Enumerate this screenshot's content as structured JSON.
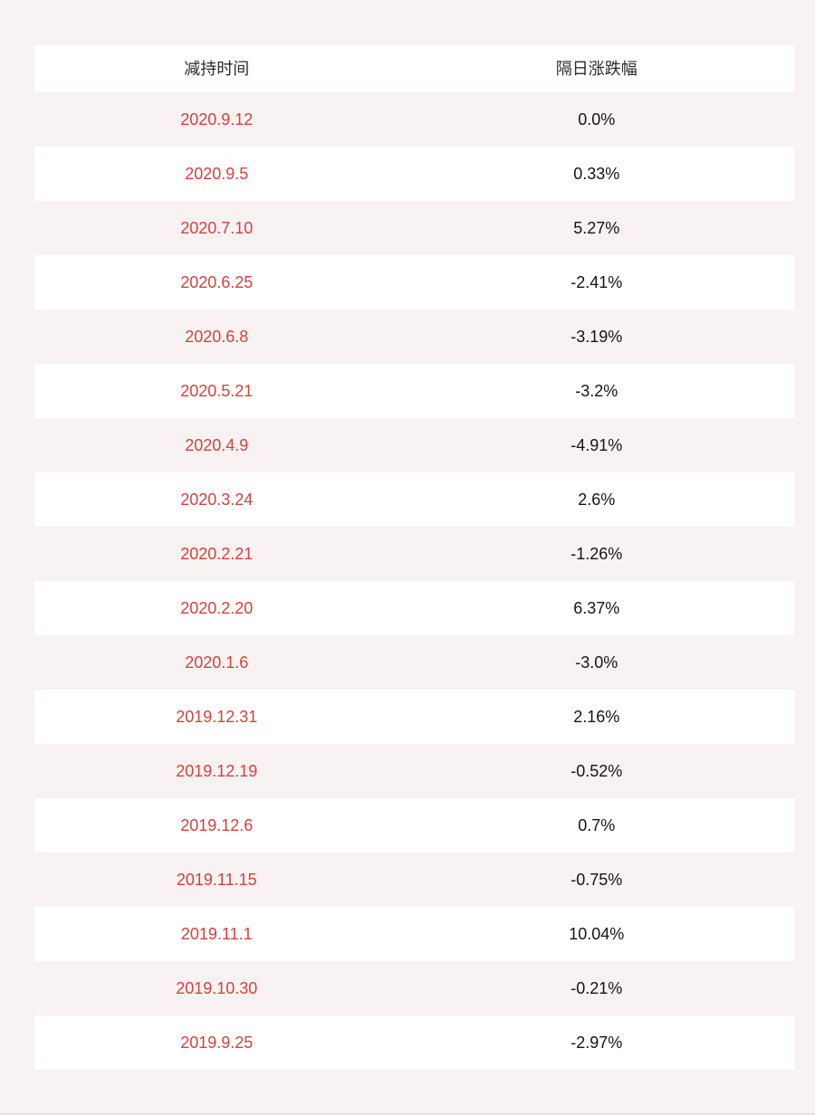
{
  "chart_data": {
    "type": "table",
    "columns": [
      "减持时间",
      "隔日涨跌幅"
    ],
    "rows": [
      {
        "date": "2020.9.12",
        "change": "0.0%"
      },
      {
        "date": "2020.9.5",
        "change": "0.33%"
      },
      {
        "date": "2020.7.10",
        "change": "5.27%"
      },
      {
        "date": "2020.6.25",
        "change": "-2.41%"
      },
      {
        "date": "2020.6.8",
        "change": "-3.19%"
      },
      {
        "date": "2020.5.21",
        "change": "-3.2%"
      },
      {
        "date": "2020.4.9",
        "change": "-4.91%"
      },
      {
        "date": "2020.3.24",
        "change": "2.6%"
      },
      {
        "date": "2020.2.21",
        "change": "-1.26%"
      },
      {
        "date": "2020.2.20",
        "change": "6.37%"
      },
      {
        "date": "2020.1.6",
        "change": "-3.0%"
      },
      {
        "date": "2019.12.31",
        "change": "2.16%"
      },
      {
        "date": "2019.12.19",
        "change": "-0.52%"
      },
      {
        "date": "2019.12.6",
        "change": "0.7%"
      },
      {
        "date": "2019.11.15",
        "change": "-0.75%"
      },
      {
        "date": "2019.11.1",
        "change": "10.04%"
      },
      {
        "date": "2019.10.30",
        "change": "-0.21%"
      },
      {
        "date": "2019.9.25",
        "change": "-2.97%"
      }
    ]
  },
  "colors": {
    "page_bg": "#f8f2f2",
    "row_white": "#ffffff",
    "date_text": "#d8413e",
    "value_text": "#141414",
    "header_text": "#2b2b2b",
    "bottom_line": "#e7e1e1"
  }
}
